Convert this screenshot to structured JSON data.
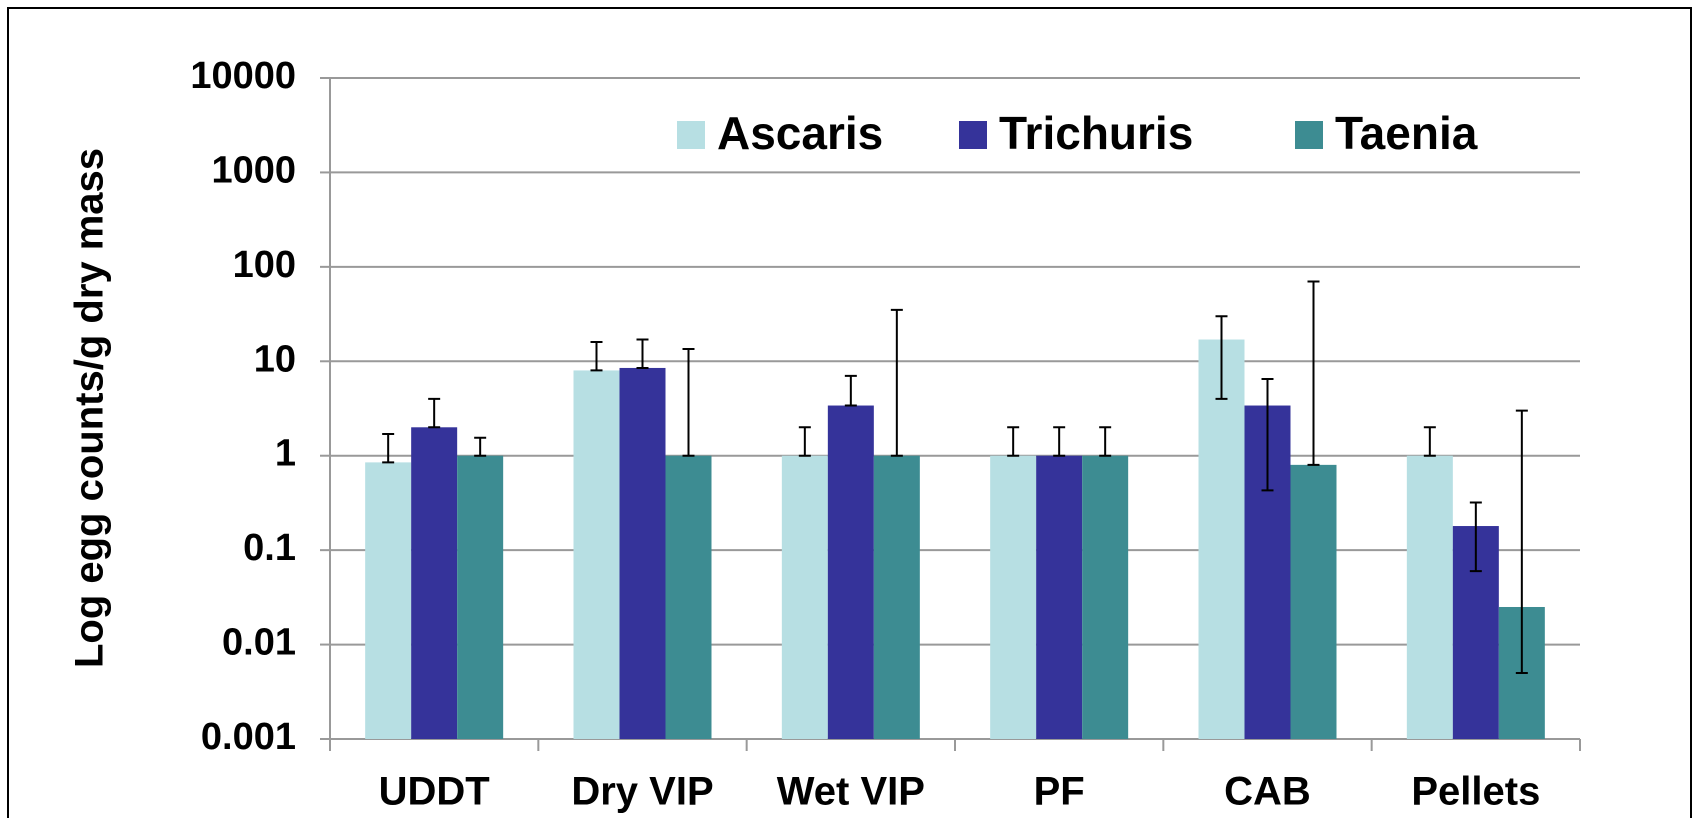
{
  "chart_data": {
    "type": "bar",
    "y_label": "Log egg counts/g dry mass",
    "categories": [
      "UDDT",
      "Dry VIP",
      "Wet VIP",
      "PF",
      "CAB",
      "Pellets"
    ],
    "series": [
      {
        "name": "Ascaris",
        "color": "#b7dfe3",
        "values": [
          0.85,
          8,
          1,
          1,
          17,
          1
        ],
        "errors": [
          [
            0,
            0.85
          ],
          [
            0,
            8
          ],
          [
            0,
            1
          ],
          [
            0,
            1
          ],
          [
            13,
            13
          ],
          [
            0,
            1
          ]
        ]
      },
      {
        "name": "Trichuris",
        "color": "#35339a",
        "values": [
          2,
          8.5,
          3.4,
          1,
          3.4,
          0.18
        ],
        "errors": [
          [
            0,
            2
          ],
          [
            0,
            8.5
          ],
          [
            0,
            3.6
          ],
          [
            0,
            1
          ],
          [
            2.97,
            3.1
          ],
          [
            0.12,
            0.14
          ]
        ]
      },
      {
        "name": "Taenia",
        "color": "#3d8c92",
        "values": [
          1,
          1,
          1,
          1,
          0.8,
          0.025
        ],
        "errors": [
          [
            0,
            0.55
          ],
          [
            0,
            12.5
          ],
          [
            0,
            34
          ],
          [
            0,
            1
          ],
          [
            0,
            69.2
          ],
          [
            0.02,
            2.975
          ]
        ]
      }
    ],
    "log_scale": true,
    "ylim": [
      0.001,
      10000
    ],
    "yticks": [
      0.001,
      0.01,
      0.1,
      1,
      10,
      100,
      1000,
      10000
    ],
    "grid": true,
    "legend": "top"
  }
}
